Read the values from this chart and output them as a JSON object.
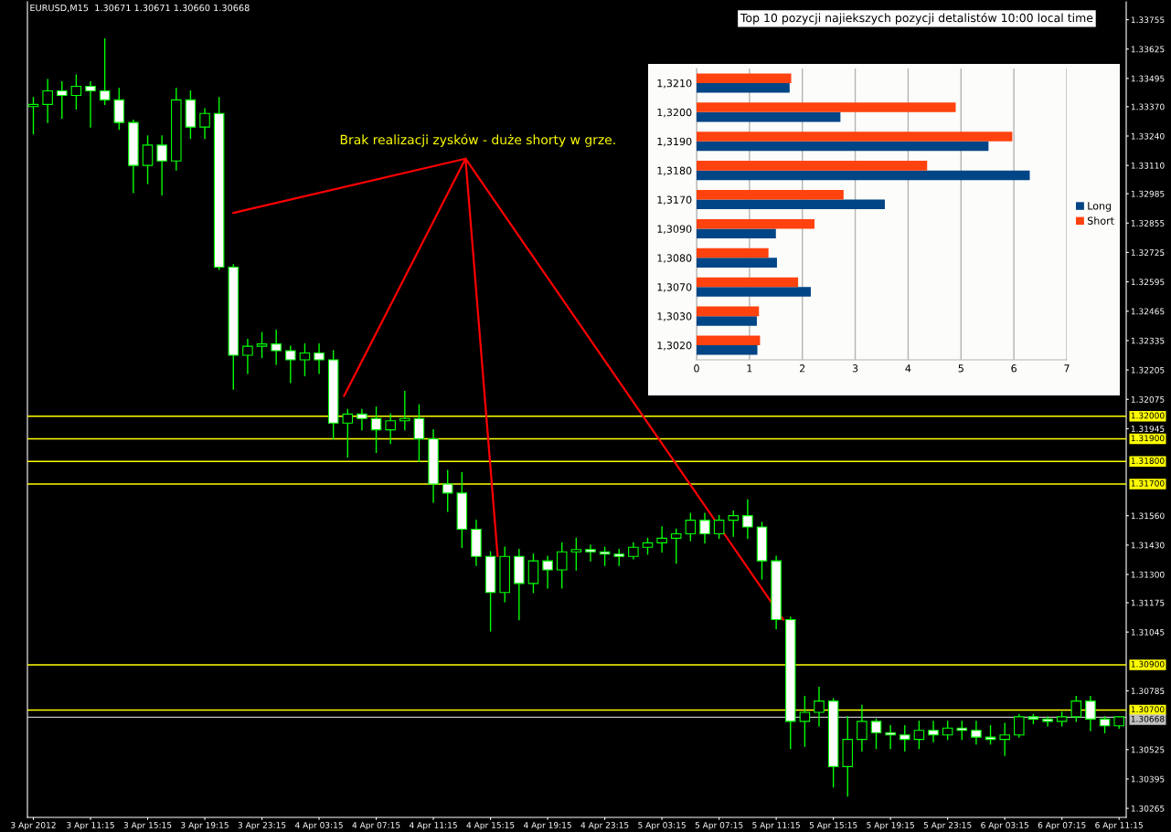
{
  "chart_data": [
    {
      "type": "candlestick",
      "title": "EURUSD,M15  1.30671 1.30671 1.30660 1.30668",
      "annotations": [
        "Brak realizacji zysków - duże shorty w grze."
      ],
      "color": "#00ff00",
      "x": [
        "2012-04-03T07:15",
        "2012-04-03T08:15",
        "2012-04-03T09:15",
        "2012-04-03T10:15",
        "2012-04-03T11:15",
        "2012-04-03T12:15",
        "2012-04-03T13:15",
        "2012-04-03T14:15",
        "2012-04-03T15:15",
        "2012-04-03T16:15",
        "2012-04-03T17:15",
        "2012-04-03T18:15",
        "2012-04-03T19:15",
        "2012-04-03T20:15",
        "2012-04-03T21:15",
        "2012-04-03T22:15",
        "2012-04-03T23:15",
        "2012-04-04T00:15",
        "2012-04-04T01:15",
        "2012-04-04T02:15",
        "2012-04-04T03:15",
        "2012-04-04T04:15",
        "2012-04-04T05:15",
        "2012-04-04T06:15",
        "2012-04-04T07:15",
        "2012-04-04T08:15",
        "2012-04-04T09:15",
        "2012-04-04T10:15",
        "2012-04-04T11:15",
        "2012-04-04T12:15",
        "2012-04-04T13:15",
        "2012-04-04T14:15",
        "2012-04-04T15:15",
        "2012-04-04T16:15",
        "2012-04-04T17:15",
        "2012-04-04T18:15",
        "2012-04-04T19:15",
        "2012-04-04T20:15",
        "2012-04-04T21:15",
        "2012-04-04T22:15",
        "2012-04-04T23:15",
        "2012-04-05T00:15",
        "2012-04-05T01:15",
        "2012-04-05T02:15",
        "2012-04-05T03:15",
        "2012-04-05T04:15",
        "2012-04-05T05:15",
        "2012-04-05T06:15",
        "2012-04-05T07:15",
        "2012-04-05T08:15",
        "2012-04-05T09:15",
        "2012-04-05T10:15",
        "2012-04-05T11:15",
        "2012-04-05T12:15",
        "2012-04-05T13:15",
        "2012-04-05T14:15",
        "2012-04-05T15:15",
        "2012-04-05T16:15",
        "2012-04-05T17:15",
        "2012-04-05T18:15",
        "2012-04-05T19:15",
        "2012-04-05T20:15",
        "2012-04-05T21:15",
        "2012-04-05T22:15",
        "2012-04-05T23:15",
        "2012-04-06T00:15",
        "2012-04-06T01:15",
        "2012-04-06T02:15",
        "2012-04-06T03:15",
        "2012-04-06T04:15",
        "2012-04-06T05:15",
        "2012-04-06T06:15",
        "2012-04-06T07:15",
        "2012-04-06T08:15",
        "2012-04-06T09:15",
        "2012-04-06T10:15",
        "2012-04-06T11:15"
      ],
      "ohlc": [
        [
          1.3337,
          1.3341,
          1.3325,
          1.3338
        ],
        [
          1.3338,
          1.3349,
          1.333,
          1.3344
        ],
        [
          1.3344,
          1.3348,
          1.3332,
          1.3342
        ],
        [
          1.3342,
          1.3351,
          1.3336,
          1.3346
        ],
        [
          1.3346,
          1.3348,
          1.3328,
          1.3344
        ],
        [
          1.3344,
          1.3367,
          1.3338,
          1.334
        ],
        [
          1.334,
          1.3345,
          1.3327,
          1.333
        ],
        [
          1.333,
          1.3331,
          1.3299,
          1.3311
        ],
        [
          1.3311,
          1.3324,
          1.3303,
          1.332
        ],
        [
          1.332,
          1.3324,
          1.3298,
          1.3313
        ],
        [
          1.3313,
          1.3345,
          1.3309,
          1.334
        ],
        [
          1.334,
          1.3344,
          1.3323,
          1.3328
        ],
        [
          1.3328,
          1.3336,
          1.3323,
          1.3334
        ],
        [
          1.3334,
          1.3341,
          1.3265,
          1.3266
        ],
        [
          1.3266,
          1.3267,
          1.3212,
          1.3227
        ],
        [
          1.3227,
          1.3234,
          1.3219,
          1.3231
        ],
        [
          1.3231,
          1.3237,
          1.3226,
          1.3232
        ],
        [
          1.3232,
          1.3238,
          1.3223,
          1.3229
        ],
        [
          1.3229,
          1.3231,
          1.3215,
          1.3225
        ],
        [
          1.3225,
          1.3232,
          1.3218,
          1.3228
        ],
        [
          1.3228,
          1.3232,
          1.3219,
          1.3225
        ],
        [
          1.3225,
          1.3229,
          1.319,
          1.3197
        ],
        [
          1.3197,
          1.3203,
          1.3182,
          1.3201
        ],
        [
          1.3201,
          1.3203,
          1.3194,
          1.3199
        ],
        [
          1.3199,
          1.3204,
          1.3184,
          1.3194
        ],
        [
          1.3194,
          1.3201,
          1.3188,
          1.3198
        ],
        [
          1.3198,
          1.3211,
          1.3194,
          1.3199
        ],
        [
          1.3199,
          1.3205,
          1.318,
          1.319
        ],
        [
          1.319,
          1.3194,
          1.3162,
          1.317
        ],
        [
          1.317,
          1.3176,
          1.3158,
          1.3166
        ],
        [
          1.3166,
          1.3175,
          1.3142,
          1.315
        ],
        [
          1.315,
          1.3154,
          1.3134,
          1.3138
        ],
        [
          1.3138,
          1.314,
          1.3105,
          1.3122
        ],
        [
          1.3122,
          1.3142,
          1.3118,
          1.3138
        ],
        [
          1.3138,
          1.3141,
          1.311,
          1.3126
        ],
        [
          1.3126,
          1.3139,
          1.3122,
          1.3136
        ],
        [
          1.3136,
          1.3138,
          1.3124,
          1.3132
        ],
        [
          1.3132,
          1.3144,
          1.3124,
          1.314
        ],
        [
          1.314,
          1.3146,
          1.3132,
          1.3141
        ],
        [
          1.3141,
          1.3143,
          1.3136,
          1.314
        ],
        [
          1.314,
          1.3142,
          1.3134,
          1.3139
        ],
        [
          1.3139,
          1.3141,
          1.3134,
          1.3138
        ],
        [
          1.3138,
          1.3144,
          1.3137,
          1.3142
        ],
        [
          1.3142,
          1.3146,
          1.3139,
          1.3144
        ],
        [
          1.3144,
          1.3151,
          1.314,
          1.3146
        ],
        [
          1.3146,
          1.315,
          1.3135,
          1.3148
        ],
        [
          1.3148,
          1.3157,
          1.3145,
          1.3154
        ],
        [
          1.3154,
          1.3157,
          1.3144,
          1.3148
        ],
        [
          1.3148,
          1.3156,
          1.3146,
          1.3154
        ],
        [
          1.3154,
          1.3158,
          1.3147,
          1.3156
        ],
        [
          1.3156,
          1.3163,
          1.3146,
          1.3151
        ],
        [
          1.3151,
          1.3153,
          1.3128,
          1.3136
        ],
        [
          1.3136,
          1.3138,
          1.3106,
          1.311
        ],
        [
          1.311,
          1.3111,
          1.3053,
          1.3065
        ],
        [
          1.3065,
          1.3076,
          1.3054,
          1.3069
        ],
        [
          1.3069,
          1.308,
          1.3063,
          1.3074
        ],
        [
          1.3074,
          1.3075,
          1.3036,
          1.3045
        ],
        [
          1.3045,
          1.3067,
          1.3032,
          1.3057
        ],
        [
          1.3057,
          1.3072,
          1.3052,
          1.3065
        ],
        [
          1.3065,
          1.3066,
          1.3053,
          1.306
        ],
        [
          1.306,
          1.3063,
          1.3053,
          1.3059
        ],
        [
          1.3059,
          1.3063,
          1.3052,
          1.3057
        ],
        [
          1.3057,
          1.3065,
          1.3053,
          1.3061
        ],
        [
          1.3061,
          1.3065,
          1.3056,
          1.3059
        ],
        [
          1.3059,
          1.3065,
          1.3057,
          1.3062
        ],
        [
          1.3062,
          1.3065,
          1.3057,
          1.3061
        ],
        [
          1.3061,
          1.3065,
          1.3055,
          1.3058
        ],
        [
          1.3058,
          1.3063,
          1.3055,
          1.3057
        ],
        [
          1.3057,
          1.3064,
          1.305,
          1.3059
        ],
        [
          1.3059,
          1.3068,
          1.3058,
          1.3067
        ],
        [
          1.3067,
          1.3068,
          1.3064,
          1.3066
        ],
        [
          1.3066,
          1.3067,
          1.3063,
          1.3065
        ],
        [
          1.3065,
          1.3069,
          1.3063,
          1.3067
        ],
        [
          1.3067,
          1.3076,
          1.3065,
          1.3074
        ],
        [
          1.3074,
          1.3076,
          1.3061,
          1.3066
        ],
        [
          1.3066,
          1.3067,
          1.306,
          1.3063
        ],
        [
          1.3063,
          1.3067,
          1.3062,
          1.3067
        ]
      ],
      "series": [
        {
          "type": "line",
          "color": "#ff0000",
          "x": [
            "2012-04-03T21:15",
            "2012-04-04T13:30",
            "2012-04-04T05:00",
            "2012-04-04T13:30",
            "2012-04-04T15:45",
            "2012-04-04T13:30",
            "2012-04-05T11:45"
          ],
          "values": [
            1.329,
            1.3314,
            1.3209,
            1.3314,
            1.3138,
            1.3314,
            1.311
          ]
        }
      ],
      "xlim": [
        "2012-04-03T06:50",
        "2012-04-06T11:45"
      ],
      "xticks": [
        {
          "value": "2012-04-03T07:15",
          "label": "3 Apr 2012"
        },
        {
          "value": "2012-04-03T11:15",
          "label": "3 Apr 11:15"
        },
        {
          "value": "2012-04-03T15:15",
          "label": "3 Apr 15:15"
        },
        {
          "value": "2012-04-03T19:15",
          "label": "3 Apr 19:15"
        },
        {
          "value": "2012-04-03T23:15",
          "label": "3 Apr 23:15"
        },
        {
          "value": "2012-04-04T03:15",
          "label": "4 Apr 03:15"
        },
        {
          "value": "2012-04-04T07:15",
          "label": "4 Apr 07:15"
        },
        {
          "value": "2012-04-04T11:15",
          "label": "4 Apr 11:15"
        },
        {
          "value": "2012-04-04T15:15",
          "label": "4 Apr 15:15"
        },
        {
          "value": "2012-04-04T19:15",
          "label": "4 Apr 19:15"
        },
        {
          "value": "2012-04-04T23:15",
          "label": "4 Apr 23:15"
        },
        {
          "value": "2012-04-05T03:15",
          "label": "5 Apr 03:15"
        },
        {
          "value": "2012-04-05T07:15",
          "label": "5 Apr 07:15"
        },
        {
          "value": "2012-04-05T11:15",
          "label": "5 Apr 11:15"
        },
        {
          "value": "2012-04-05T15:15",
          "label": "5 Apr 15:15"
        },
        {
          "value": "2012-04-05T19:15",
          "label": "5 Apr 19:15"
        },
        {
          "value": "2012-04-05T23:15",
          "label": "5 Apr 23:15"
        },
        {
          "value": "2012-04-06T03:15",
          "label": "6 Apr 03:15"
        },
        {
          "value": "2012-04-06T07:15",
          "label": "6 Apr 07:15"
        },
        {
          "value": "2012-04-06T11:15",
          "label": "6 Apr 11:15"
        }
      ],
      "ylim": [
        1.30225,
        1.33834
      ],
      "yticks": [
        1.33755,
        1.33625,
        1.33495,
        {
          "value": 1.3337,
          "label": "1.33370"
        },
        {
          "value": 1.3324,
          "label": "1.33240"
        },
        {
          "value": 1.3311,
          "label": "1.33110"
        },
        1.32985,
        1.32855,
        1.32725,
        1.32595,
        1.32465,
        1.32335,
        1.32205,
        1.32075,
        1.31945,
        {
          "value": 1.3156,
          "label": "1.31560"
        },
        {
          "value": 1.3143,
          "label": "1.31430"
        },
        {
          "value": 1.313,
          "label": "1.31300"
        },
        1.31175,
        1.31045,
        1.30785,
        1.30525,
        1.30395,
        1.30265
      ],
      "ref_lines": [
        {
          "axis": "y",
          "value": 1.32,
          "label": "1.32000",
          "color": "#ffff00"
        },
        {
          "axis": "y",
          "value": 1.319,
          "label": "1.31900",
          "color": "#ffff00"
        },
        {
          "axis": "y",
          "value": 1.318,
          "label": "1.31800",
          "color": "#ffff00"
        },
        {
          "axis": "y",
          "value": 1.317,
          "label": "1.31700",
          "color": "#ffff00"
        },
        {
          "axis": "y",
          "value": 1.309,
          "label": "1.30900",
          "color": "#ffff00"
        },
        {
          "axis": "y",
          "value": 1.307,
          "label": "1.30700",
          "color": "#ffff00"
        },
        {
          "axis": "y",
          "value": 1.30668,
          "label": "1.30668",
          "color": "#c0c0c0"
        }
      ]
    },
    {
      "type": "bar",
      "orientation": "horizontal",
      "title": "Top 10 pozycji najiekszych pozycji detalistów 10:00 local time",
      "categories": [
        "1,3210",
        "1,3200",
        "1,3190",
        "1,3180",
        "1,3170",
        "1,3090",
        "1,3080",
        "1,3070",
        "1,3030",
        "1,3020"
      ],
      "series": [
        {
          "name": "Long",
          "color": "#004586",
          "values": [
            1.76,
            2.72,
            5.52,
            6.3,
            3.56,
            1.5,
            1.52,
            2.16,
            1.14,
            1.15
          ]
        },
        {
          "name": "Short",
          "color": "#ff420e",
          "values": [
            1.79,
            4.9,
            5.97,
            4.36,
            2.78,
            2.23,
            1.36,
            1.92,
            1.18,
            1.2
          ]
        }
      ],
      "xlim": [
        0,
        7
      ],
      "xticks": [
        0,
        1,
        2,
        3,
        4,
        5,
        6,
        7
      ],
      "grid": "x",
      "legend": "right"
    }
  ]
}
